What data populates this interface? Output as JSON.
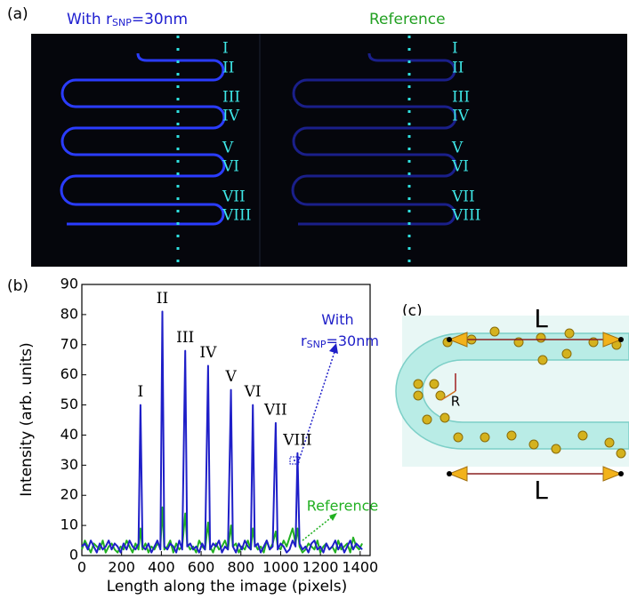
{
  "panel_a": {
    "label": "(a)"
  },
  "panel_c": {
    "label": "(c)",
    "length_labels": [
      "L",
      "L"
    ],
    "radius_label": "R"
  },
  "chart_data": {
    "type": "line",
    "label": "(b)",
    "x_label": "Length along the image (pixels)",
    "y_label": "Intensity (arb. units)",
    "peak_labels": [
      "I",
      "II",
      "III",
      "IV",
      "V",
      "VI",
      "VII",
      "VIII"
    ],
    "xlim": [
      0,
      1450
    ],
    "ylim": [
      0,
      90
    ],
    "xticks": [
      0,
      200,
      400,
      600,
      800,
      1000,
      1200,
      1400
    ],
    "yticks": [
      0,
      10,
      20,
      30,
      40,
      50,
      60,
      70,
      80,
      90
    ],
    "grid": false,
    "x": [
      0,
      15,
      30,
      45,
      60,
      75,
      90,
      105,
      120,
      135,
      150,
      165,
      180,
      195,
      210,
      225,
      240,
      255,
      270,
      285,
      295,
      305,
      320,
      335,
      350,
      365,
      380,
      395,
      405,
      415,
      430,
      445,
      460,
      475,
      490,
      505,
      520,
      530,
      545,
      560,
      575,
      590,
      605,
      620,
      635,
      645,
      660,
      675,
      690,
      705,
      720,
      735,
      750,
      760,
      775,
      790,
      805,
      820,
      835,
      850,
      860,
      870,
      885,
      900,
      915,
      930,
      945,
      960,
      975,
      985,
      1000,
      1015,
      1030,
      1045,
      1060,
      1075,
      1085,
      1095,
      1110,
      1125,
      1140,
      1155,
      1170,
      1185,
      1200,
      1215,
      1230,
      1245,
      1260,
      1275,
      1290,
      1305,
      1320,
      1335,
      1350,
      1365,
      1380,
      1395,
      1410
    ],
    "series": [
      {
        "name": "With rSNP=30nm",
        "subscript": [
          6,
          9
        ],
        "color": "#1f1fc8",
        "values": [
          3,
          4,
          2,
          5,
          3,
          1,
          4,
          2,
          3,
          5,
          2,
          4,
          3,
          1,
          4,
          2,
          5,
          3,
          2,
          4,
          50,
          3,
          2,
          4,
          1,
          3,
          5,
          2,
          81,
          3,
          2,
          4,
          3,
          1,
          5,
          2,
          68,
          3,
          4,
          2,
          3,
          1,
          4,
          2,
          63,
          2,
          4,
          3,
          5,
          1,
          3,
          2,
          55,
          3,
          1,
          4,
          2,
          5,
          3,
          2,
          50,
          3,
          4,
          1,
          3,
          5,
          2,
          3,
          44,
          2,
          4,
          3,
          1,
          2,
          5,
          3,
          34,
          4,
          2,
          3,
          1,
          4,
          5,
          2,
          3,
          1,
          4,
          2,
          3,
          5,
          2,
          4,
          1,
          3,
          5,
          2,
          4,
          3,
          2
        ]
      },
      {
        "name": "Reference",
        "color": "#22b022",
        "values": [
          2,
          5,
          3,
          1,
          4,
          3,
          2,
          5,
          1,
          3,
          4,
          2,
          1,
          3,
          2,
          5,
          3,
          1,
          4,
          2,
          9,
          2,
          4,
          1,
          3,
          2,
          4,
          3,
          16,
          2,
          3,
          5,
          1,
          4,
          2,
          3,
          14,
          4,
          2,
          3,
          1,
          5,
          3,
          2,
          11,
          3,
          1,
          4,
          2,
          3,
          5,
          2,
          10,
          3,
          4,
          1,
          3,
          2,
          5,
          2,
          9,
          4,
          2,
          3,
          1,
          5,
          2,
          4,
          8,
          3,
          2,
          5,
          3,
          6,
          9,
          4,
          9,
          3,
          1,
          2,
          4,
          3,
          2,
          5,
          1,
          3,
          4,
          2,
          3,
          1,
          5,
          2,
          3,
          4,
          1,
          6,
          3,
          2,
          4
        ]
      }
    ]
  }
}
